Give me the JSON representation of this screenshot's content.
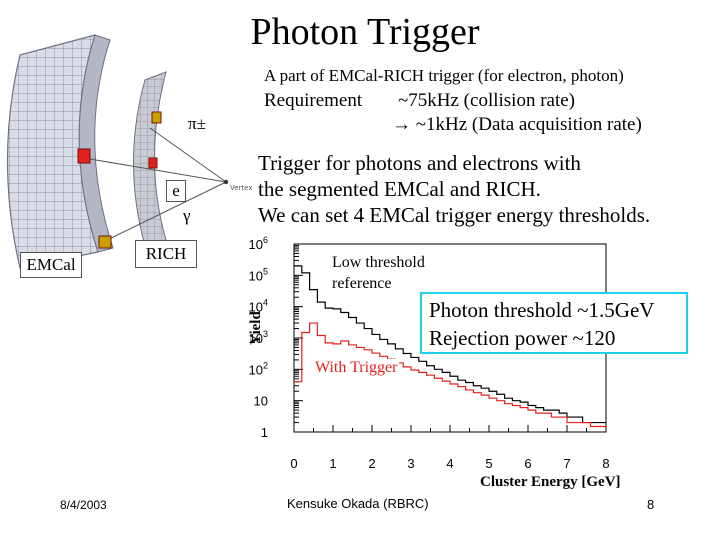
{
  "slide": {
    "title": "Photon Trigger",
    "subtitle_line1": "A part of EMCal-RICH trigger (for electron, photon)",
    "requirement_label": "Requirement",
    "requirement_value": "~75kHz (collision rate)",
    "requirement_arrow_line": "→ ~1kHz (Data acquisition rate)",
    "description_lines": [
      "Trigger for photons and electrons with",
      "the segmented EMCal and RICH.",
      "We can set 4 EMCal trigger energy thresholds."
    ],
    "footer": {
      "date": "8/4/2003",
      "author": "Kensuke Okada (RBRC)",
      "page": "8"
    }
  },
  "detector_diagram": {
    "pion_label": "π±",
    "electron_label": "e",
    "gamma_label": "γ",
    "emcal_label": "EMCal",
    "rich_label": "RICH",
    "vertex_label": "Vertex"
  },
  "annotations": {
    "low_threshold_line1": "Low threshold",
    "low_threshold_line2": "reference",
    "callout_line1": "Photon threshold ~1.5GeV",
    "callout_line2": "Rejection power ~120",
    "with_trigger": "With Trigger"
  },
  "colors": {
    "reference_series": "#000000",
    "trigger_series": "#e3211c",
    "callout_border": "#1bd0e6"
  },
  "chart_data": {
    "type": "line",
    "step": true,
    "xlabel": "Cluster Energy [GeV]",
    "ylabel": "Yield",
    "xlim": [
      0,
      8
    ],
    "ylim": [
      1,
      1000000
    ],
    "ylog": true,
    "x_ticks": [
      "0",
      "1",
      "2",
      "3",
      "4",
      "5",
      "6",
      "7",
      "8"
    ],
    "y_ticks": [
      {
        "base": "1",
        "exp": ""
      },
      {
        "base": "10",
        "exp": ""
      },
      {
        "base": "10",
        "exp": "2"
      },
      {
        "base": "10",
        "exp": "3"
      },
      {
        "base": "10",
        "exp": "4"
      },
      {
        "base": "10",
        "exp": "5"
      },
      {
        "base": "10",
        "exp": "6"
      }
    ],
    "x": [
      0.1,
      0.3,
      0.5,
      0.7,
      0.9,
      1.1,
      1.3,
      1.5,
      1.7,
      1.9,
      2.1,
      2.3,
      2.5,
      2.7,
      2.9,
      3.1,
      3.3,
      3.5,
      3.7,
      3.9,
      4.1,
      4.3,
      4.5,
      4.7,
      4.9,
      5.1,
      5.3,
      5.5,
      5.7,
      5.9,
      6.1,
      6.3,
      6.5,
      6.7,
      6.9,
      7.1,
      7.3,
      7.5,
      7.7,
      7.9
    ],
    "series": [
      {
        "values": [
          200000,
          120000,
          35000,
          14000,
          9000,
          8500,
          6500,
          4500,
          3000,
          2000,
          1300,
          900,
          650,
          450,
          320,
          240,
          180,
          130,
          100,
          80,
          60,
          45,
          38,
          30,
          25,
          20,
          16,
          12,
          10,
          9,
          7,
          6,
          5,
          5,
          4,
          3,
          3,
          2,
          2,
          2
        ]
      },
      {
        "values": [
          40,
          1500,
          3000,
          1200,
          700,
          650,
          800,
          600,
          500,
          420,
          330,
          260,
          210,
          160,
          120,
          95,
          80,
          65,
          52,
          42,
          34,
          28,
          22,
          18,
          15,
          12,
          10,
          8,
          7,
          6,
          5,
          4,
          4,
          3,
          3,
          2,
          2,
          2,
          1.5,
          1.5
        ]
      }
    ]
  }
}
